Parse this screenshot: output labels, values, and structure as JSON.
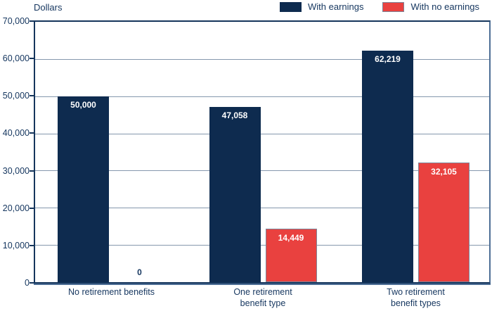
{
  "colors": {
    "with_earnings": "#0e2b4f",
    "with_no_earnings": "#e9413f",
    "no_earnings_border": "#7d8598",
    "gridline": "#8598ad",
    "axis_text": "#15365f",
    "bar_value_text": "#ffffff"
  },
  "chart_data": {
    "type": "bar",
    "title": "",
    "ylabel": "Dollars",
    "xlabel": "",
    "categories": [
      [
        "No retirement benefits"
      ],
      [
        "One retirement",
        "benefit type"
      ],
      [
        "Two retirement",
        "benefit types"
      ]
    ],
    "series": [
      {
        "name": "With earnings",
        "color": "#0e2b4f",
        "values": [
          50000,
          47058,
          62219
        ],
        "value_labels": [
          "50,000",
          "47,058",
          "62,219"
        ]
      },
      {
        "name": "With no earnings",
        "color": "#e9413f",
        "values": [
          0,
          14449,
          32105
        ],
        "value_labels": [
          "0",
          "14,449",
          "32,105"
        ]
      }
    ],
    "ylim": [
      0,
      70000
    ],
    "yticks": [
      0,
      10000,
      20000,
      30000,
      40000,
      50000,
      60000,
      70000
    ],
    "ytick_labels": [
      "0",
      "10,000",
      "20,000",
      "30,000",
      "40,000",
      "50,000",
      "60,000",
      "70,000"
    ],
    "grid": true,
    "legend_position": "top"
  }
}
